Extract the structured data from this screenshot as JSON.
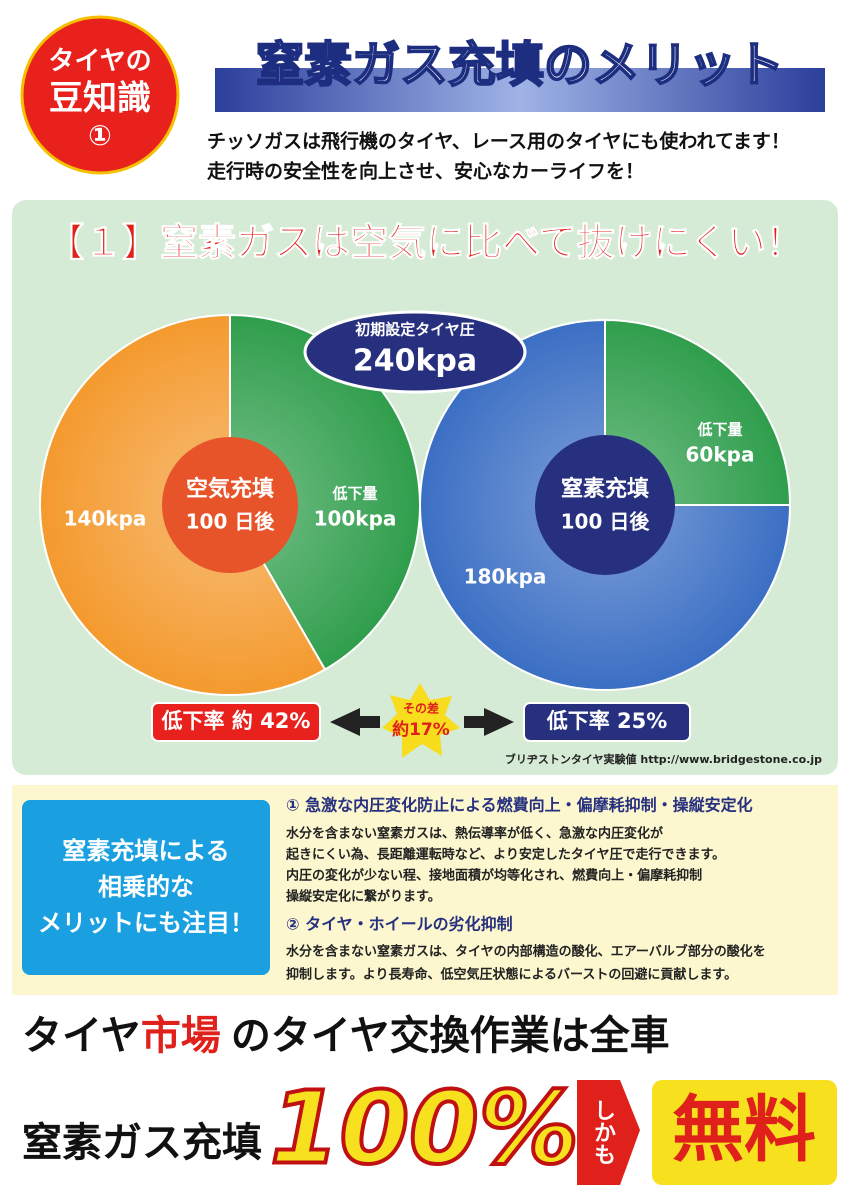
{
  "badge": {
    "lines": [
      "タイヤの",
      "豆知識",
      "①"
    ]
  },
  "header": {
    "title": "窒素ガス充填のメリット",
    "lines": [
      "チッソガスは飛行機のタイヤ、レース用のタイヤにも使われてます！",
      "走行時の安全性を向上させ、安心なカーライフを！"
    ]
  },
  "comparison": {
    "headline": "【１】窒素ガスは空気に比べて抜けにくい！",
    "initial": {
      "caption": "初期設定タイヤ圧",
      "label": "240kpa"
    },
    "pies": [
      {
        "title": "空気充填",
        "subtitle": "100 日後",
        "rate": "低下率 約 42%",
        "slices": [
          {
            "caption": "低下量",
            "value": 100,
            "label": "100kpa",
            "color": "#2f9e4c"
          },
          {
            "value": 140,
            "label": "140kpa",
            "color": "#f49a2e"
          }
        ]
      },
      {
        "title": "窒素充填",
        "subtitle": "100 日後",
        "rate": "低下率 25%",
        "slices": [
          {
            "caption": "低下量",
            "value": 60,
            "label": "60kpa",
            "color": "#2f9e4c"
          },
          {
            "value": 180,
            "label": "180kpa",
            "color": "#3b6fc4"
          }
        ]
      }
    ],
    "difference": [
      "その差",
      "約17%"
    ],
    "source": "ブリヂストンタイヤ実験値 http://www.bridgestone.co.jp"
  },
  "merits": {
    "box": [
      "窒素充填による",
      "相乗的な",
      "メリットにも注目！"
    ],
    "items": [
      {
        "heading": "① 急激な内圧変化防止による燃費向上・偏摩耗抑制・操縦安定化",
        "lines": [
          "水分を含まない窒素ガスは、熱伝導率が低く、急激な内圧変化が",
          "起きにくい為、長距離運転時など、より安定したタイヤ圧で走行できます。",
          "内圧の変化が少ない程、接地面積が均等化され、燃費向上・偏摩耗抑制",
          "操縦安定化に繋がります。"
        ]
      },
      {
        "heading": "② タイヤ・ホイールの劣化抑制",
        "lines": [
          "水分を含まない窒素ガスは、タイヤの内部構造の酸化、エアーバルブ部分の酸化を",
          "抑制します。より長寿命、低空気圧状態によるバーストの回避に貢献します。"
        ]
      }
    ]
  },
  "promo": {
    "line1": [
      "タイヤ",
      "市場",
      "のタイヤ交換作業は全車"
    ],
    "line2": [
      "窒素ガス充填",
      "100%",
      "しかも",
      "無料"
    ]
  }
}
